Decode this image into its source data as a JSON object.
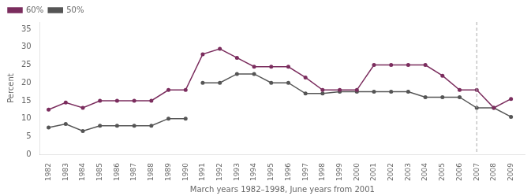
{
  "chart_data": {
    "type": "line",
    "xlabel": "March years 1982–1998, June years from 2001",
    "ylabel": "Percent",
    "series": [
      {
        "name": "60%",
        "color": "#7b2d5e",
        "marker": "circle",
        "x": [
          1982,
          1983,
          1984,
          1985,
          1986,
          1987,
          1988,
          1989,
          1990,
          1991,
          1992,
          1993,
          1994,
          1995,
          1996,
          1997,
          1998,
          1999,
          2000,
          2001,
          2002,
          2003,
          2004,
          2005,
          2006,
          2007,
          2008,
          2009
        ],
        "values": [
          12.5,
          14.5,
          13.0,
          15.0,
          15.0,
          15.0,
          15.0,
          18.0,
          18.0,
          28.0,
          29.5,
          27.0,
          24.5,
          24.5,
          24.5,
          21.5,
          18.0,
          18.0,
          18.0,
          25.0,
          25.0,
          25.0,
          25.0,
          22.0,
          18.0,
          18.0,
          13.0,
          15.5
        ]
      },
      {
        "color": "#555555",
        "marker": "circle",
        "x": [
          1982,
          1983,
          1984,
          1985,
          1986,
          1987,
          1988,
          1989,
          1990
        ],
        "values": [
          7.5,
          8.5,
          6.5,
          8.0,
          8.0,
          8.0,
          8.0,
          10.0,
          10.0
        ]
      },
      {
        "name": "50%",
        "color": "#555555",
        "marker": "circle",
        "x": [
          1991,
          1992,
          1993,
          1994,
          1995,
          1996,
          1997,
          1998,
          1999,
          2000,
          2001,
          2002,
          2003,
          2004,
          2005,
          2006,
          2007,
          2008,
          2009
        ],
        "values": [
          20.0,
          20.0,
          22.5,
          22.5,
          20.0,
          20.0,
          17.0,
          17.0,
          17.5,
          17.5,
          17.5,
          17.5,
          17.5,
          16.0,
          16.0,
          16.0,
          13.0,
          13.0,
          10.5
        ]
      }
    ],
    "xlim": [
      1981.5,
      2009.8
    ],
    "xticks": [
      1982,
      1983,
      1984,
      1985,
      1986,
      1987,
      1988,
      1989,
      1990,
      1991,
      1992,
      1993,
      1994,
      1995,
      1996,
      1997,
      1998,
      1999,
      2000,
      2001,
      2002,
      2003,
      2004,
      2005,
      2006,
      2007,
      2008,
      2009
    ],
    "ylim": [
      0,
      37
    ],
    "yticks": [
      0,
      5,
      10,
      15,
      20,
      25,
      30,
      35
    ],
    "grid": false,
    "legend": "upper left",
    "vlines": [
      {
        "x": 2007,
        "line_style": "dashed"
      }
    ]
  }
}
